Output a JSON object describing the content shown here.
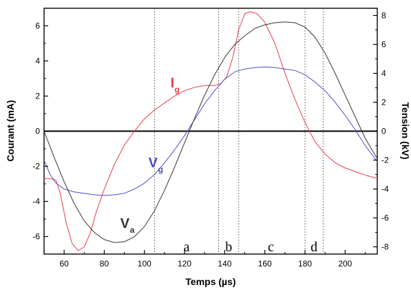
{
  "chart_data": {
    "type": "line",
    "xlabel": "Temps (µs)",
    "ylabel_left": "Courant (mA)",
    "ylabel_right": "Tension (kV)",
    "xlim": [
      50,
      216
    ],
    "ylim_left": [
      -7,
      7
    ],
    "ylim_right": [
      -8.5,
      8.5
    ],
    "x_ticks": [
      60,
      80,
      100,
      120,
      140,
      160,
      180,
      200
    ],
    "y_left_ticks": [
      -6,
      -4,
      -2,
      0,
      2,
      4,
      6
    ],
    "y_right_ticks": [
      -8,
      -6,
      -4,
      -2,
      0,
      2,
      4,
      6,
      8
    ],
    "zero_line": 0,
    "dashed_markers_x": [
      105,
      137,
      147,
      180,
      189
    ],
    "regions": [
      {
        "label": "a",
        "x": 121
      },
      {
        "label": "b",
        "x": 142
      },
      {
        "label": "c",
        "x": 163
      },
      {
        "label": "d",
        "x": 184.5
      }
    ],
    "series": [
      {
        "name": "Ig",
        "label_main": "I",
        "label_sub": "g",
        "axis": "left",
        "color": "#e8394a",
        "label_pos": {
          "x": 113,
          "y": 2.5
        },
        "points": [
          [
            50,
            -2.7
          ],
          [
            53,
            -2.7
          ],
          [
            56,
            -2.8
          ],
          [
            58,
            -3.5
          ],
          [
            61,
            -5.2
          ],
          [
            64,
            -6.4
          ],
          [
            67,
            -6.8
          ],
          [
            70,
            -6.6
          ],
          [
            73,
            -5.8
          ],
          [
            76,
            -4.6
          ],
          [
            80,
            -3.3
          ],
          [
            85,
            -1.9
          ],
          [
            90,
            -0.8
          ],
          [
            95,
            0.0
          ],
          [
            100,
            0.7
          ],
          [
            105,
            1.2
          ],
          [
            110,
            1.6
          ],
          [
            115,
            2.0
          ],
          [
            120,
            2.3
          ],
          [
            125,
            2.5
          ],
          [
            130,
            2.6
          ],
          [
            135,
            2.6
          ],
          [
            138,
            2.7
          ],
          [
            141,
            3.1
          ],
          [
            144,
            4.2
          ],
          [
            147,
            5.8
          ],
          [
            150,
            6.7
          ],
          [
            153,
            6.8
          ],
          [
            156,
            6.7
          ],
          [
            160,
            6.2
          ],
          [
            165,
            5.0
          ],
          [
            170,
            3.3
          ],
          [
            175,
            1.8
          ],
          [
            180,
            0.5
          ],
          [
            185,
            -0.6
          ],
          [
            190,
            -1.3
          ],
          [
            195,
            -1.8
          ],
          [
            200,
            -2.1
          ],
          [
            205,
            -2.3
          ],
          [
            210,
            -2.5
          ],
          [
            216,
            -2.7
          ]
        ]
      },
      {
        "name": "Vg",
        "label_main": "V",
        "label_sub": "g",
        "axis": "right",
        "color": "#4a4dc4",
        "label_pos": {
          "x": 102,
          "y": -2.5
        },
        "points": [
          [
            50,
            -2.0
          ],
          [
            53,
            -3.0
          ],
          [
            56,
            -3.6
          ],
          [
            60,
            -4.0
          ],
          [
            65,
            -4.2
          ],
          [
            70,
            -4.3
          ],
          [
            75,
            -4.4
          ],
          [
            80,
            -4.45
          ],
          [
            85,
            -4.4
          ],
          [
            90,
            -4.3
          ],
          [
            95,
            -4.0
          ],
          [
            100,
            -3.6
          ],
          [
            105,
            -3.0
          ],
          [
            110,
            -2.2
          ],
          [
            115,
            -1.3
          ],
          [
            120,
            -0.3
          ],
          [
            125,
            0.8
          ],
          [
            130,
            1.9
          ],
          [
            135,
            2.8
          ],
          [
            140,
            3.6
          ],
          [
            145,
            4.1
          ],
          [
            150,
            4.3
          ],
          [
            155,
            4.4
          ],
          [
            160,
            4.45
          ],
          [
            165,
            4.4
          ],
          [
            170,
            4.3
          ],
          [
            175,
            4.2
          ],
          [
            180,
            3.9
          ],
          [
            185,
            3.4
          ],
          [
            190,
            2.8
          ],
          [
            195,
            2.0
          ],
          [
            200,
            1.1
          ],
          [
            205,
            0.1
          ],
          [
            210,
            -1.0
          ],
          [
            216,
            -2.1
          ]
        ]
      },
      {
        "name": "Va",
        "label_main": "V",
        "label_sub": "a",
        "axis": "right",
        "color": "#333333",
        "label_pos": {
          "x": 88,
          "y": -6.7
        },
        "points": [
          [
            50,
            0.0
          ],
          [
            55,
            -1.8
          ],
          [
            60,
            -3.5
          ],
          [
            65,
            -5.0
          ],
          [
            70,
            -6.2
          ],
          [
            75,
            -7.0
          ],
          [
            80,
            -7.5
          ],
          [
            85,
            -7.7
          ],
          [
            90,
            -7.65
          ],
          [
            95,
            -7.3
          ],
          [
            100,
            -6.6
          ],
          [
            105,
            -5.5
          ],
          [
            110,
            -4.1
          ],
          [
            115,
            -2.5
          ],
          [
            120,
            -0.8
          ],
          [
            125,
            0.9
          ],
          [
            130,
            2.5
          ],
          [
            135,
            3.9
          ],
          [
            140,
            5.1
          ],
          [
            145,
            6.0
          ],
          [
            150,
            6.6
          ],
          [
            155,
            7.1
          ],
          [
            160,
            7.35
          ],
          [
            165,
            7.5
          ],
          [
            170,
            7.55
          ],
          [
            175,
            7.5
          ],
          [
            180,
            7.2
          ],
          [
            185,
            6.5
          ],
          [
            190,
            5.4
          ],
          [
            195,
            4.0
          ],
          [
            200,
            2.5
          ],
          [
            205,
            1.0
          ],
          [
            210,
            -0.5
          ],
          [
            216,
            -1.9
          ]
        ]
      }
    ]
  }
}
